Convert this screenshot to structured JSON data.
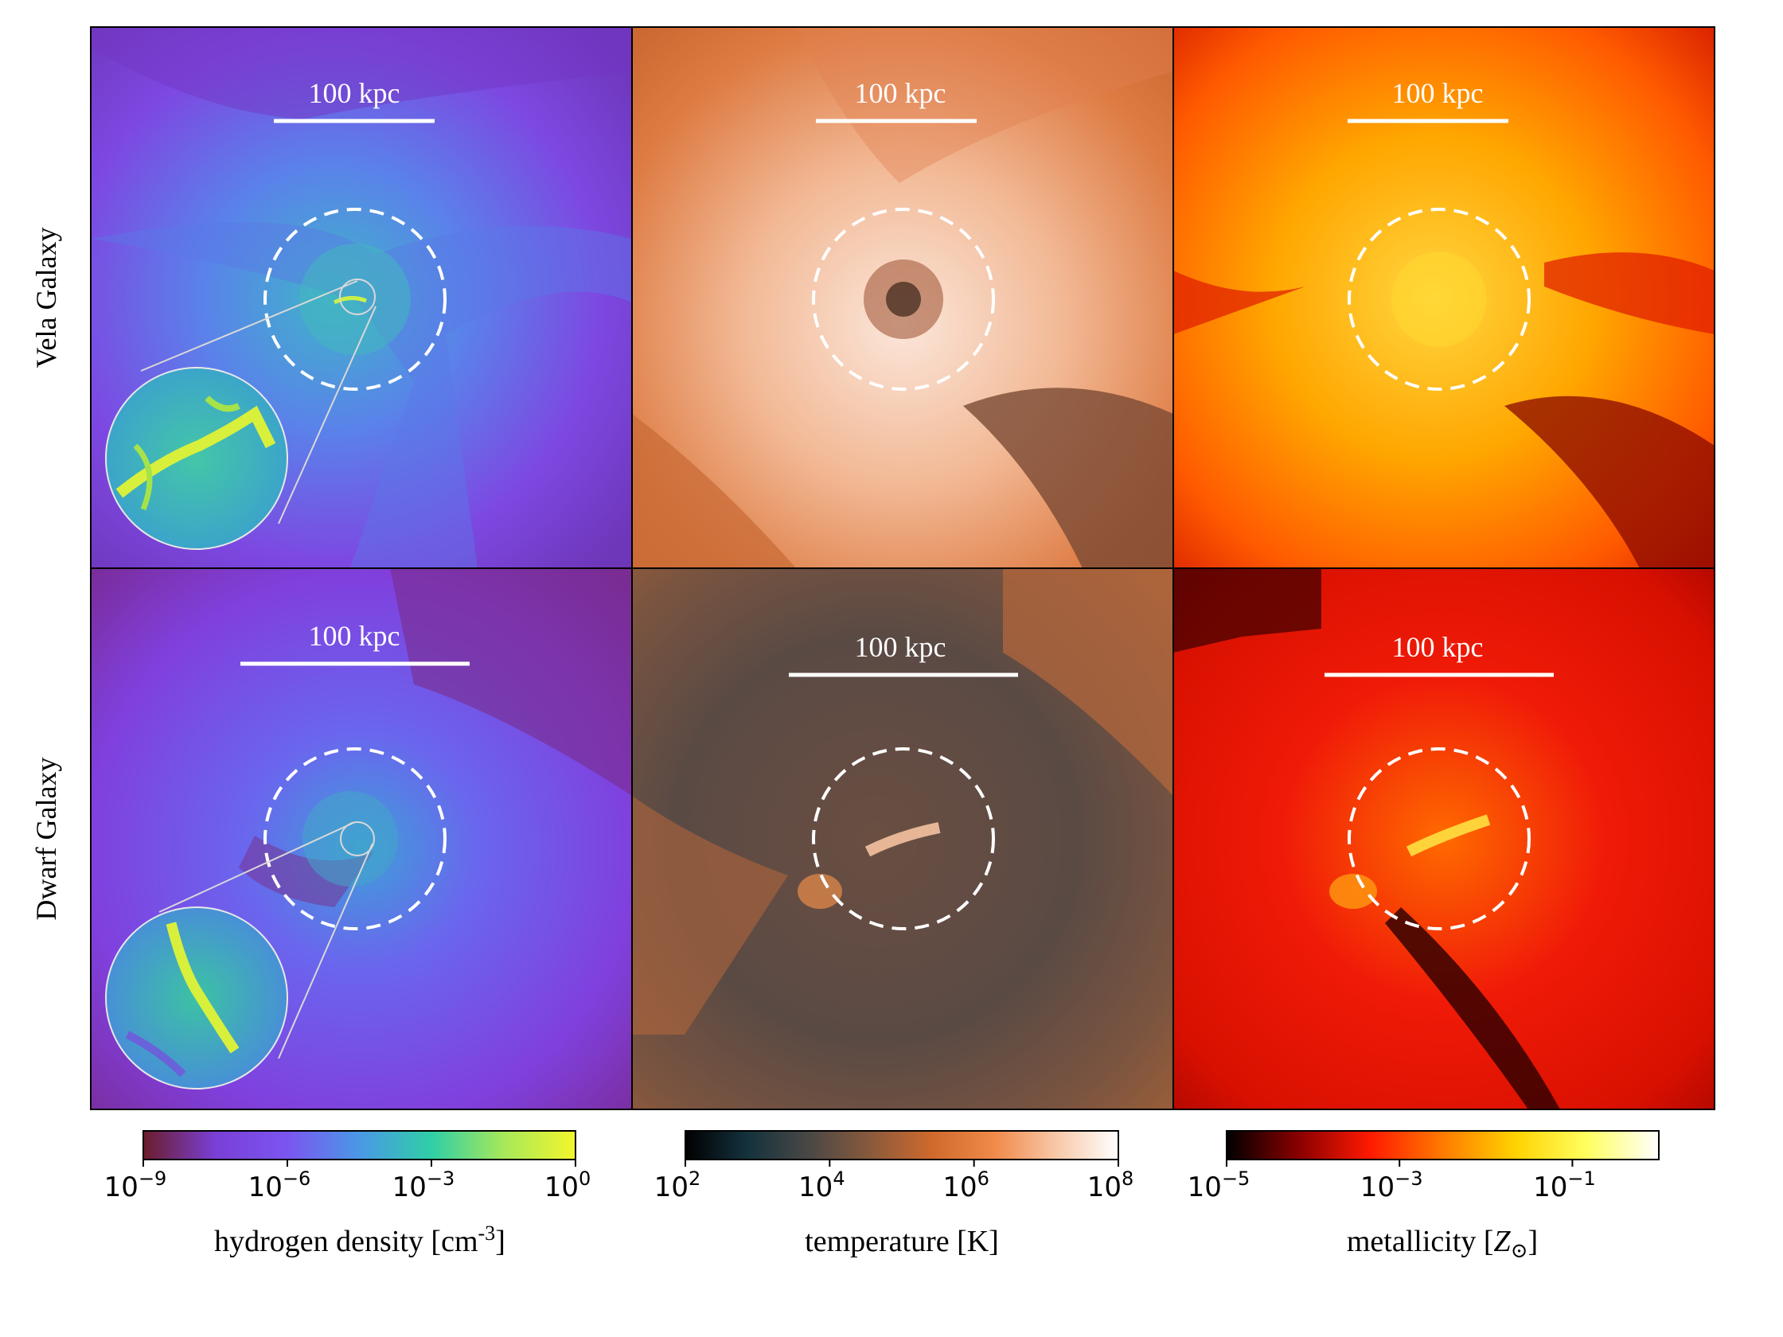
{
  "chart_data": {
    "type": "image-grid",
    "rows": [
      {
        "label": "Vela Galaxy"
      },
      {
        "label": "Dwarf Galaxy"
      }
    ],
    "columns": [
      {
        "quantity": "hydrogen density",
        "colorbar": {
          "label": "hydrogen density [cm",
          "label_exp": "-3",
          "label_tail": "]",
          "scale": "log",
          "range": [
            1e-09,
            1
          ],
          "ticks": [
            {
              "base": "10",
              "exp": "−9"
            },
            {
              "base": "10",
              "exp": "−6"
            },
            {
              "base": "10",
              "exp": "−3"
            },
            {
              "base": "10",
              "exp": "0"
            }
          ],
          "colors": [
            "#6b1d2a",
            "#7a3fd6",
            "#7b55f0",
            "#4a98e6",
            "#2fcfa6",
            "#a6e85a",
            "#f4f62c"
          ]
        }
      },
      {
        "quantity": "temperature",
        "colorbar": {
          "label": "temperature [K]",
          "scale": "log",
          "range": [
            100,
            100000000
          ],
          "ticks": [
            {
              "base": "10",
              "exp": "2"
            },
            {
              "base": "10",
              "exp": "4"
            },
            {
              "base": "10",
              "exp": "6"
            },
            {
              "base": "10",
              "exp": "8"
            }
          ],
          "colors": [
            "#000000",
            "#14323d",
            "#4a4845",
            "#8a5a3c",
            "#d06a2c",
            "#f08a4a",
            "#f7c8a8",
            "#ffffff"
          ]
        }
      },
      {
        "quantity": "metallicity",
        "colorbar": {
          "label": "metallicity [",
          "label_sym": "Z",
          "label_sub": "⊙",
          "label_tail": "]",
          "scale": "log",
          "range": [
            1e-05,
            1
          ],
          "ticks": [
            {
              "base": "10",
              "exp": "−5"
            },
            {
              "base": "10",
              "exp": "−3"
            },
            {
              "base": "10",
              "exp": "−1"
            }
          ],
          "colors": [
            "#000000",
            "#8a0000",
            "#ff1a00",
            "#ff7a00",
            "#ffd200",
            "#ffff60",
            "#ffffff"
          ]
        }
      }
    ],
    "scale_bar_label": "100 kpc",
    "scale_bar_kpc": 100
  },
  "palette": {
    "panel_bg": [
      "#7e40dc",
      "#dd7a3e",
      "#ff8c10",
      "#8038d2",
      "#5a4a44",
      "#e0180c"
    ],
    "zoom_circle": "#5aa0d8"
  }
}
